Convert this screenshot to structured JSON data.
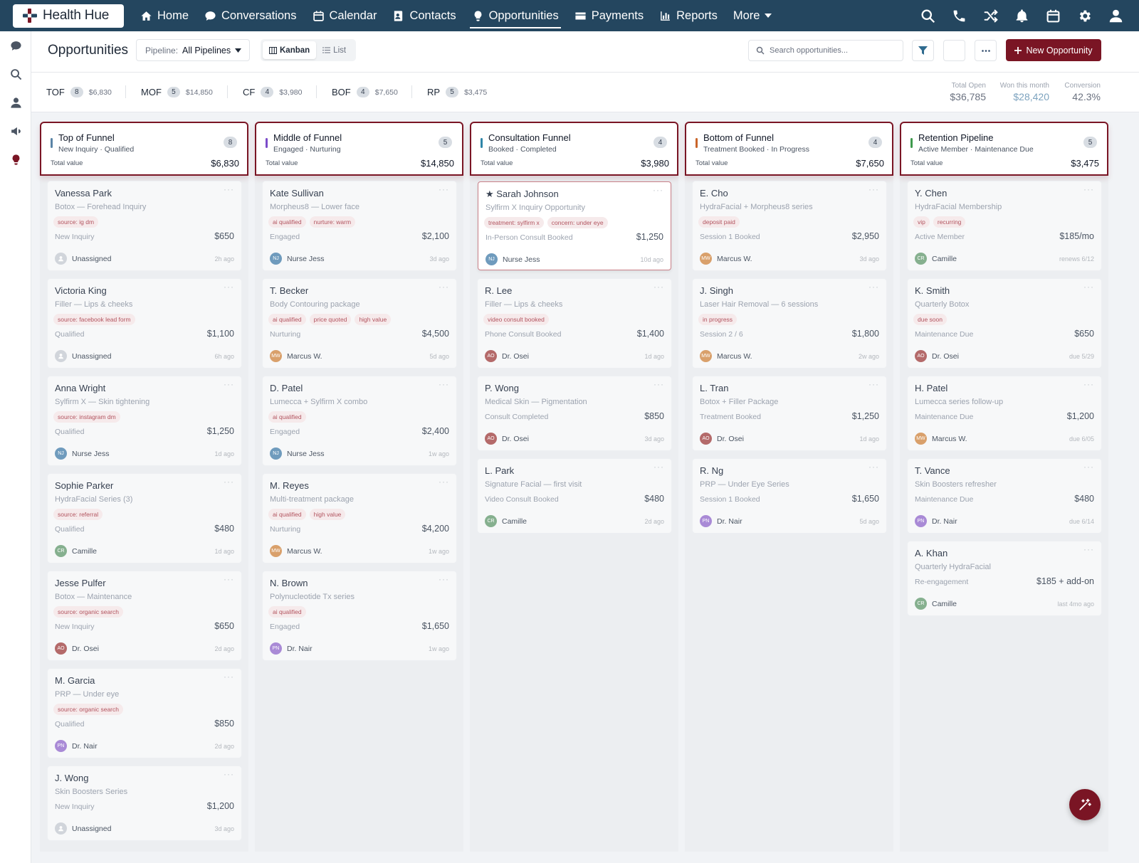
{
  "brand": {
    "name": "Health Hue"
  },
  "nav": {
    "items": [
      {
        "label": "Home",
        "icon": "home-icon"
      },
      {
        "label": "Conversations",
        "icon": "chat-icon"
      },
      {
        "label": "Calendar",
        "icon": "calendar-icon"
      },
      {
        "label": "Contacts",
        "icon": "contacts-icon"
      },
      {
        "label": "Opportunities",
        "icon": "lightbulb-icon",
        "active": true
      },
      {
        "label": "Payments",
        "icon": "card-icon"
      },
      {
        "label": "Reports",
        "icon": "bar-chart-icon"
      },
      {
        "label": "More",
        "icon": "caret-down-icon"
      }
    ],
    "right_icons": [
      "search-icon",
      "phone-icon",
      "shuffle-icon",
      "bell-icon",
      "calendar-icon",
      "settings-icon",
      "user-icon"
    ]
  },
  "sidebar": {
    "icons": [
      "chat-icon",
      "search-icon",
      "user-icon",
      "megaphone-icon",
      "lightbulb-icon"
    ]
  },
  "header": {
    "title": "Opportunities",
    "pipeline_label": "Pipeline:",
    "pipeline_value": "All Pipelines",
    "view_kanban": "Kanban",
    "view_list": "List",
    "search_placeholder": "Search opportunities...",
    "new_button": "New Opportunity"
  },
  "summary": {
    "pipelines": [
      {
        "code": "TOF",
        "count": "8",
        "amount": "$6,830"
      },
      {
        "code": "MOF",
        "count": "5",
        "amount": "$14,850"
      },
      {
        "code": "CF",
        "count": "4",
        "amount": "$3,980"
      },
      {
        "code": "BOF",
        "count": "4",
        "amount": "$7,650"
      },
      {
        "code": "RP",
        "count": "5",
        "amount": "$3,475"
      }
    ],
    "stats": [
      {
        "label": "Total Open",
        "value": "$36,785",
        "color": "#6b7280"
      },
      {
        "label": "Won this month",
        "value": "$28,420",
        "color": "#7da3bf"
      },
      {
        "label": "Conversion",
        "value": "42.3%",
        "color": "#6b7280"
      }
    ]
  },
  "colors": {
    "accent": "#7a1524",
    "nav": "#24465f"
  },
  "columns": [
    {
      "title": "Top of Funnel",
      "subtitle": "New Inquiry · Qualified",
      "count": "8",
      "total_label": "Total value",
      "total": "$6,830",
      "bar_color": "#5a84a6",
      "cards": [
        {
          "name": "Vanessa Park",
          "desc": "Botox — Forehead Inquiry",
          "tags": [
            "source: ig dm"
          ],
          "stage": "New Inquiry",
          "value": "$650",
          "owner": "Unassigned",
          "initials": "",
          "av_color": "#d1d5db",
          "ago": "2h ago"
        },
        {
          "name": "Victoria King",
          "desc": "Filler — Lips & cheeks",
          "tags": [
            "source: facebook lead form"
          ],
          "stage": "Qualified",
          "value": "$1,100",
          "owner": "Unassigned",
          "initials": "",
          "av_color": "#d1d5db",
          "ago": "6h ago"
        },
        {
          "name": "Anna Wright",
          "desc": "Sylfirm X — Skin tightening",
          "tags": [
            "source: instagram dm"
          ],
          "stage": "Qualified",
          "value": "$1,250",
          "owner": "Nurse Jess",
          "initials": "NJ",
          "av_color": "#6f9bbd",
          "ago": "1d ago"
        },
        {
          "name": "Sophie Parker",
          "desc": "HydraFacial Series (3)",
          "tags": [
            "source: referral"
          ],
          "stage": "Qualified",
          "value": "$480",
          "owner": "Camille",
          "initials": "CR",
          "av_color": "#86b08f",
          "ago": "1d ago"
        },
        {
          "name": "Jesse Pulfer",
          "desc": "Botox — Maintenance",
          "tags": [
            "source: organic search"
          ],
          "stage": "New Inquiry",
          "value": "$650",
          "owner": "Dr. Osei",
          "initials": "AO",
          "av_color": "#b46a6a",
          "ago": "2d ago"
        },
        {
          "name": "M. Garcia",
          "desc": "PRP — Under eye",
          "tags": [
            "source: organic search"
          ],
          "stage": "Qualified",
          "value": "$850",
          "owner": "Dr. Nair",
          "initials": "PN",
          "av_color": "#a98ad6",
          "ago": "2d ago"
        },
        {
          "name": "J. Wong",
          "desc": "Skin Boosters Series",
          "tags": [],
          "stage": "New Inquiry",
          "value": "$1,200",
          "owner": "Unassigned",
          "initials": "",
          "av_color": "#d1d5db",
          "ago": "3d ago"
        }
      ]
    },
    {
      "title": "Middle of Funnel",
      "subtitle": "Engaged · Nurturing",
      "count": "5",
      "total_label": "Total value",
      "total": "$14,850",
      "bar_color": "#7b4bc9",
      "cards": [
        {
          "name": "Kate Sullivan",
          "desc": "Morpheus8 — Lower face",
          "tags": [
            "ai qualified",
            "nurture: warm"
          ],
          "stage": "Engaged",
          "value": "$2,100",
          "owner": "Nurse Jess",
          "initials": "NJ",
          "av_color": "#6f9bbd",
          "ago": "3d ago"
        },
        {
          "name": "T. Becker",
          "desc": "Body Contouring package",
          "tags": [
            "ai qualified",
            "price quoted",
            "high value"
          ],
          "stage": "Nurturing",
          "value": "$4,500",
          "owner": "Marcus W.",
          "initials": "MW",
          "av_color": "#d9a06b",
          "ago": "5d ago"
        },
        {
          "name": "D. Patel",
          "desc": "Lumecca + Sylfirm X combo",
          "tags": [
            "ai qualified"
          ],
          "stage": "Engaged",
          "value": "$2,400",
          "owner": "Nurse Jess",
          "initials": "NJ",
          "av_color": "#6f9bbd",
          "ago": "1w ago"
        },
        {
          "name": "M. Reyes",
          "desc": "Multi-treatment package",
          "tags": [
            "ai qualified",
            "high value"
          ],
          "stage": "Nurturing",
          "value": "$4,200",
          "owner": "Marcus W.",
          "initials": "MW",
          "av_color": "#d9a06b",
          "ago": "1w ago"
        },
        {
          "name": "N. Brown",
          "desc": "Polynucleotide Tx series",
          "tags": [
            "ai qualified"
          ],
          "stage": "Engaged",
          "value": "$1,650",
          "owner": "Dr. Nair",
          "initials": "PN",
          "av_color": "#a98ad6",
          "ago": "1w ago"
        }
      ]
    },
    {
      "title": "Consultation Funnel",
      "subtitle": "Booked · Completed",
      "count": "4",
      "total_label": "Total value",
      "total": "$3,980",
      "bar_color": "#2f86a8",
      "cards": [
        {
          "name": "★ Sarah Johnson",
          "featured": true,
          "desc": "Sylfirm X Inquiry Opportunity",
          "tags": [
            "treatment: sylfirm x",
            "concern: under eye"
          ],
          "stage": "In-Person Consult Booked",
          "value": "$1,250",
          "owner": "Nurse Jess",
          "initials": "NJ",
          "av_color": "#6f9bbd",
          "ago": "10d ago"
        },
        {
          "name": "R. Lee",
          "desc": "Filler — Lips & cheeks",
          "tags": [
            "video consult booked"
          ],
          "stage": "Phone Consult Booked",
          "value": "$1,400",
          "owner": "Dr. Osei",
          "initials": "AO",
          "av_color": "#b46a6a",
          "ago": "1d ago"
        },
        {
          "name": "P. Wong",
          "desc": "Medical Skin — Pigmentation",
          "tags": [],
          "stage": "Consult Completed",
          "value": "$850",
          "owner": "Dr. Osei",
          "initials": "AO",
          "av_color": "#b46a6a",
          "ago": "3d ago"
        },
        {
          "name": "L. Park",
          "desc": "Signature Facial — first visit",
          "tags": [],
          "stage": "Video Consult Booked",
          "value": "$480",
          "owner": "Camille",
          "initials": "CR",
          "av_color": "#86b08f",
          "ago": "2d ago"
        }
      ]
    },
    {
      "title": "Bottom of Funnel",
      "subtitle": "Treatment Booked · In Progress",
      "count": "4",
      "total_label": "Total value",
      "total": "$7,650",
      "bar_color": "#c9652a",
      "cards": [
        {
          "name": "E. Cho",
          "desc": "HydraFacial + Morpheus8 series",
          "tags": [
            "deposit paid"
          ],
          "stage": "Session 1 Booked",
          "value": "$2,950",
          "owner": "Marcus W.",
          "initials": "MW",
          "av_color": "#d9a06b",
          "ago": "3d ago"
        },
        {
          "name": "J. Singh",
          "desc": "Laser Hair Removal — 6 sessions",
          "tags": [
            "in progress"
          ],
          "stage": "Session 2 / 6",
          "value": "$1,800",
          "owner": "Marcus W.",
          "initials": "MW",
          "av_color": "#d9a06b",
          "ago": "2w ago"
        },
        {
          "name": "L. Tran",
          "desc": "Botox + Filler Package",
          "tags": [],
          "stage": "Treatment Booked",
          "value": "$1,250",
          "owner": "Dr. Osei",
          "initials": "AO",
          "av_color": "#b46a6a",
          "ago": "1d ago"
        },
        {
          "name": "R. Ng",
          "desc": "PRP — Under Eye Series",
          "tags": [],
          "stage": "Session 1 Booked",
          "value": "$1,650",
          "owner": "Dr. Nair",
          "initials": "PN",
          "av_color": "#a98ad6",
          "ago": "5d ago"
        }
      ]
    },
    {
      "title": "Retention Pipeline",
      "subtitle": "Active Member · Maintenance Due",
      "count": "5",
      "total_label": "Total value",
      "total": "$3,475",
      "bar_color": "#3f9a4e",
      "cards": [
        {
          "name": "Y. Chen",
          "desc": "HydraFacial Membership",
          "tags": [
            "vip",
            "recurring"
          ],
          "stage": "Active Member",
          "value": "$185/mo",
          "owner": "Camille",
          "initials": "CR",
          "av_color": "#86b08f",
          "ago": "renews 6/12"
        },
        {
          "name": "K. Smith",
          "desc": "Quarterly Botox",
          "tags": [
            "due soon"
          ],
          "stage": "Maintenance Due",
          "value": "$650",
          "owner": "Dr. Osei",
          "initials": "AO",
          "av_color": "#b46a6a",
          "ago": "due 5/29"
        },
        {
          "name": "H. Patel",
          "desc": "Lumecca series follow-up",
          "tags": [],
          "stage": "Maintenance Due",
          "value": "$1,200",
          "owner": "Marcus W.",
          "initials": "MW",
          "av_color": "#d9a06b",
          "ago": "due 6/05"
        },
        {
          "name": "T. Vance",
          "desc": "Skin Boosters refresher",
          "tags": [],
          "stage": "Maintenance Due",
          "value": "$480",
          "owner": "Dr. Nair",
          "initials": "PN",
          "av_color": "#a98ad6",
          "ago": "due 6/14"
        },
        {
          "name": "A. Khan",
          "desc": "Quarterly HydraFacial",
          "tags": [],
          "stage": "Re-engagement",
          "value": "$185 + add-on",
          "owner": "Camille",
          "initials": "CR",
          "av_color": "#86b08f",
          "ago": "last 4mo ago"
        }
      ]
    }
  ]
}
